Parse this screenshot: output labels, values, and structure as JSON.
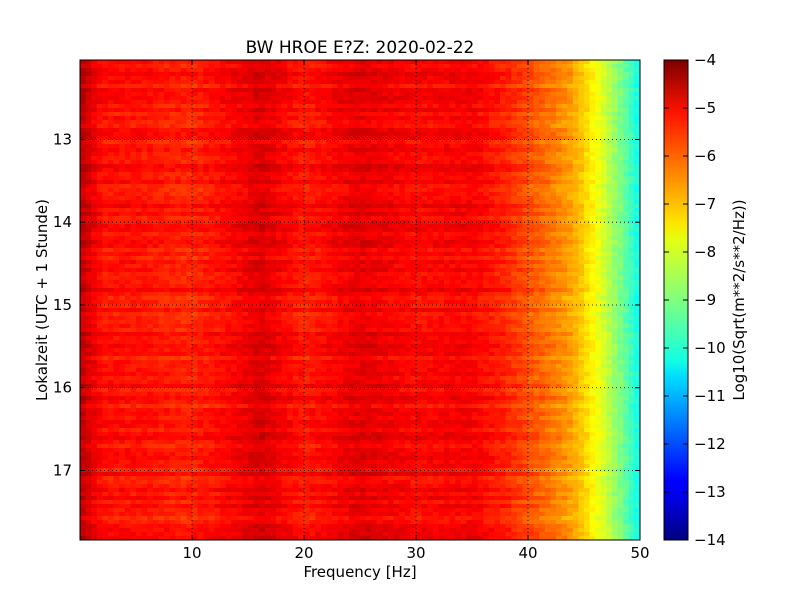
{
  "chart_data": {
    "type": "heatmap",
    "title": "BW HROE E?Z: 2020-02-22",
    "xlabel": "Frequency [Hz]",
    "ylabel": "Lokalzeit (UTC + 1 Stunde)",
    "xlim": [
      0,
      50
    ],
    "ylim_hours": [
      12.04,
      17.84
    ],
    "y_inverted": true,
    "x_ticks": [
      10,
      20,
      30,
      40,
      50
    ],
    "x_tick_labels": [
      "10",
      "20",
      "30",
      "40",
      "50"
    ],
    "y_ticks": [
      13,
      14,
      15,
      16,
      17
    ],
    "y_tick_labels": [
      "13",
      "14",
      "15",
      "16",
      "17"
    ],
    "grid": true,
    "colormap": "jet",
    "colorbar": {
      "label": "Log10(Sqrt(m**2/s**2/Hz))",
      "range": [
        -14,
        -4
      ],
      "ticks": [
        -4,
        -5,
        -6,
        -7,
        -8,
        -9,
        -10,
        -11,
        -12,
        -13,
        -14
      ],
      "tick_labels": [
        "−4",
        "−5",
        "−6",
        "−7",
        "−8",
        "−9",
        "−10",
        "−11",
        "−12",
        "−13",
        "−14"
      ]
    },
    "spectral_profile": {
      "frequency_hz": [
        0,
        1,
        2,
        5,
        10,
        15,
        16,
        20,
        25,
        30,
        35,
        38,
        40,
        42,
        44,
        45,
        46,
        47,
        48,
        49,
        50
      ],
      "log10_amplitude": [
        -4.6,
        -5.0,
        -5.4,
        -5.4,
        -5.6,
        -5.1,
        -4.9,
        -5.5,
        -5.0,
        -5.3,
        -5.2,
        -5.6,
        -6.0,
        -6.4,
        -6.9,
        -7.3,
        -7.8,
        -8.3,
        -8.9,
        -9.5,
        -10.2
      ]
    }
  }
}
